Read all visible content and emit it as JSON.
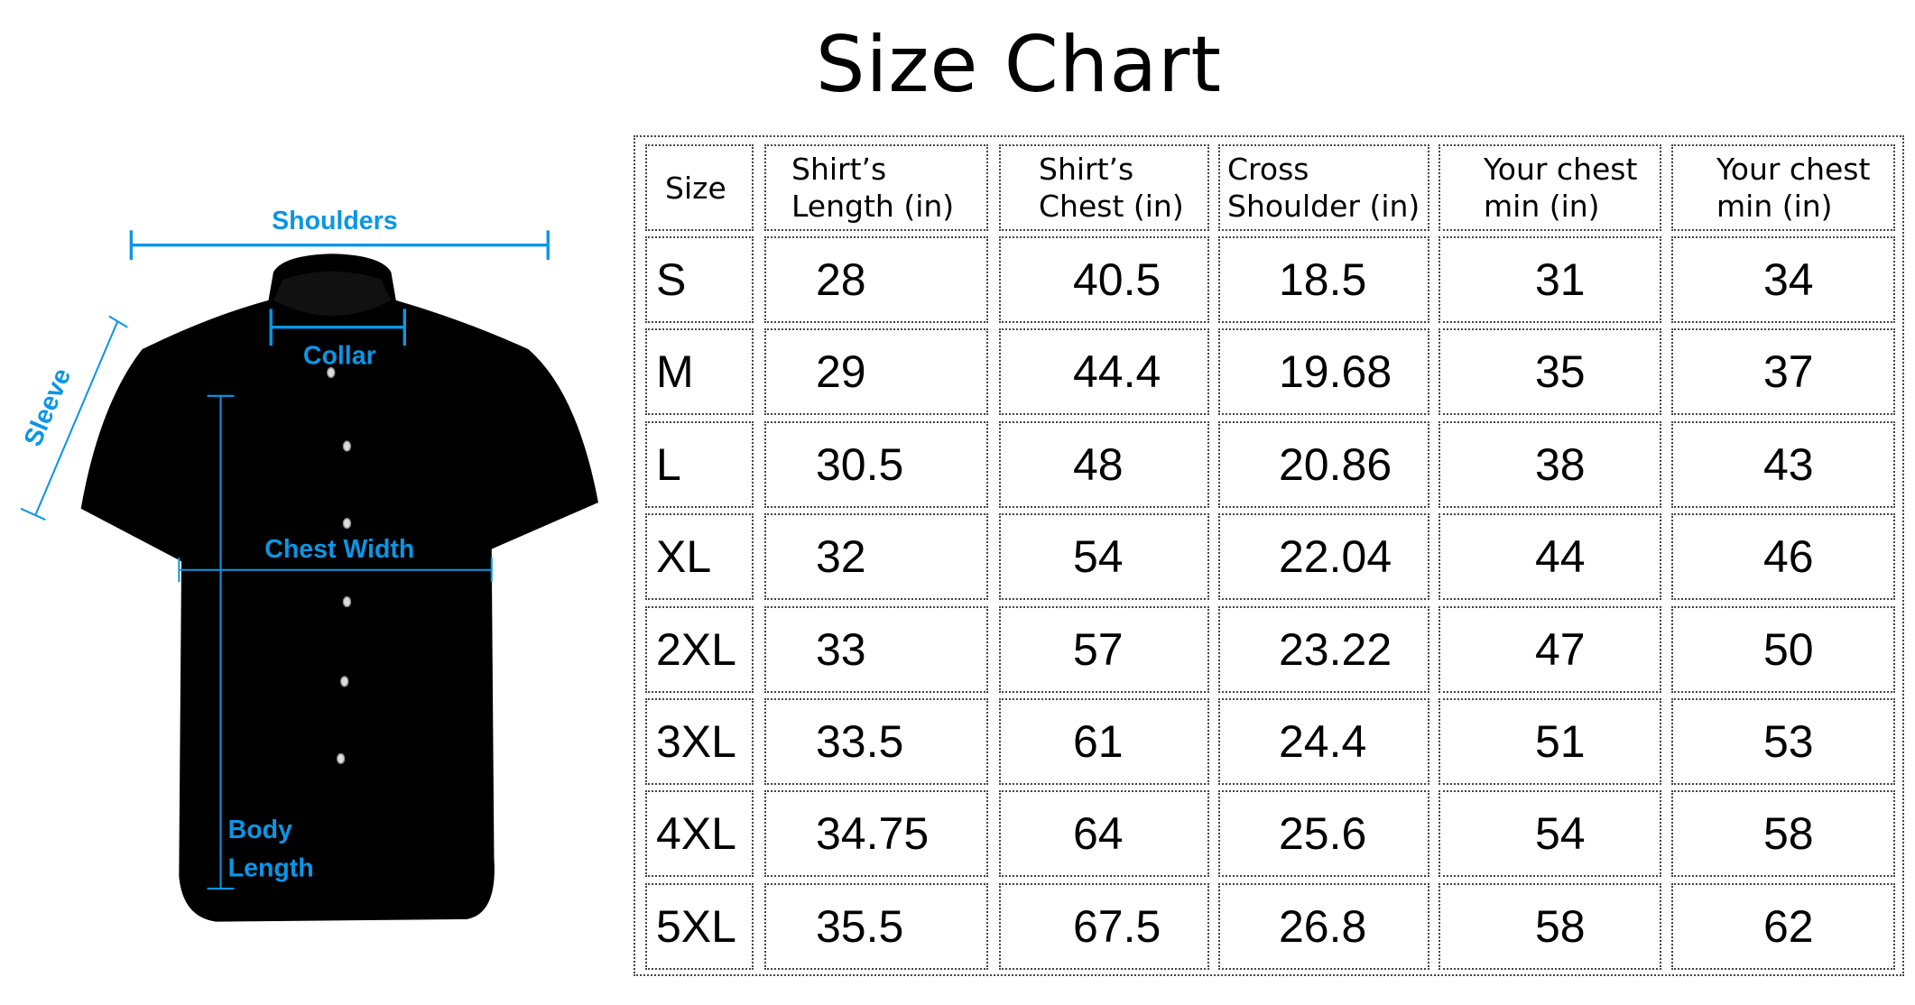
{
  "title": "Size Chart",
  "diagram": {
    "labels": {
      "shoulders": "Shoulders",
      "collar": "Collar",
      "sleeve": "Sleeve",
      "chest_width": "Chest Width",
      "body_length_1": "Body",
      "body_length_2": "Length"
    },
    "accent_color": "#0a96e6",
    "garment_color": "#000000"
  },
  "table": {
    "headers": [
      "Size",
      "Shirt’s\nLength (in)",
      "Shirt’s\nChest (in)",
      "Cross\nShoulder (in)",
      "Your chest\nmin (in)",
      "Your chest\nmin (in)"
    ],
    "rows": [
      [
        "S",
        "28",
        "40.5",
        "18.5",
        "31",
        "34"
      ],
      [
        "M",
        "29",
        "44.4",
        "19.68",
        "35",
        "37"
      ],
      [
        "L",
        "30.5",
        "48",
        "20.86",
        "38",
        "43"
      ],
      [
        "XL",
        "32",
        "54",
        "22.04",
        "44",
        "46"
      ],
      [
        "2XL",
        "33",
        "57",
        "23.22",
        "47",
        "50"
      ],
      [
        "3XL",
        "33.5",
        "61",
        "24.4",
        "51",
        "53"
      ],
      [
        "4XL",
        "34.75",
        "64",
        "25.6",
        "54",
        "58"
      ],
      [
        "5XL",
        "35.5",
        "67.5",
        "26.8",
        "58",
        "62"
      ]
    ]
  }
}
